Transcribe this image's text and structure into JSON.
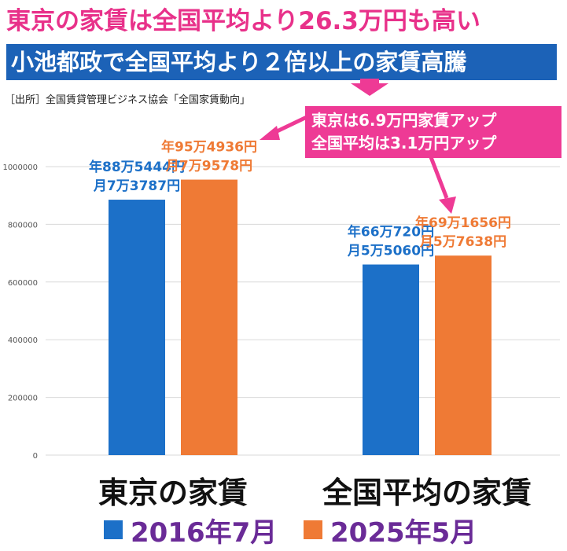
{
  "header": {
    "title": "東京の家賃は全国平均より26.3万円も高い",
    "subtitle": "小池都政で全国平均より２倍以上の家賃高騰"
  },
  "source": "［出所］全国賃貸管理ビジネス協会「全国家賃動向」",
  "callout": {
    "line1": "東京は6.9万円家賃アップ",
    "line2": "全国平均は3.1万円アップ"
  },
  "colors": {
    "blue": "#1c70c8",
    "orange": "#ef7a35",
    "blue_label": "#1c70c8",
    "orange_label": "#ef7a35",
    "pink": "#ee3a95",
    "legend_text": "#6a2b97"
  },
  "chart_data": {
    "type": "bar",
    "categories": [
      "東京の家賃",
      "全国平均の家賃"
    ],
    "series": [
      {
        "name": "2016年7月",
        "values": [
          885444,
          660720
        ],
        "labels": [
          [
            "年88万5444円",
            "月7万3787円"
          ],
          [
            "年66万720円",
            "月5万5060円"
          ]
        ]
      },
      {
        "name": "2025年5月",
        "values": [
          954936,
          691656
        ],
        "labels": [
          [
            "年95万4936円",
            "月7万9578円"
          ],
          [
            "年69万1656円",
            "月5万7638円"
          ]
        ]
      }
    ],
    "yticks": [
      0,
      200000,
      400000,
      600000,
      800000,
      1000000
    ],
    "ylim": [
      0,
      1000000
    ],
    "grid": true,
    "legend_position": "bottom"
  }
}
